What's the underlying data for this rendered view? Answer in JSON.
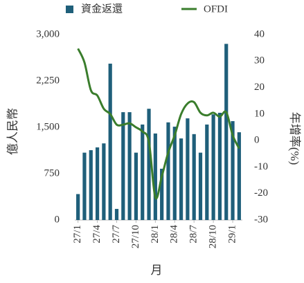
{
  "chart_data": {
    "type": "bar-line",
    "x_label": "月",
    "y_label": "億人民幣",
    "y2_label": "年增率(%)",
    "categories": [
      "27/1",
      null,
      null,
      "27/4",
      null,
      null,
      "27/7",
      null,
      null,
      "27/10",
      null,
      null,
      "28/1",
      null,
      null,
      "28/4",
      null,
      null,
      "28/7",
      null,
      null,
      "28/10",
      null,
      null,
      "29/1",
      null
    ],
    "series": [
      {
        "name": "資金返還",
        "type": "bar",
        "color": "#1f5f7a",
        "values": [
          420,
          1090,
          1130,
          1175,
          1240,
          2530,
          180,
          1745,
          1745,
          1090,
          1545,
          1800,
          1400,
          830,
          1580,
          1510,
          1320,
          1645,
          1390,
          1090,
          1545,
          1710,
          1735,
          2850,
          1600,
          1420
        ]
      },
      {
        "name": "OFDI",
        "type": "line",
        "axis": "y2",
        "color": "#3a7d2c",
        "values": [
          34.7,
          29.5,
          19,
          17,
          12,
          10,
          6,
          6,
          6.5,
          5,
          3.4,
          -0.5,
          -21.5,
          -13.5,
          -4.5,
          2,
          10,
          14,
          14.5,
          10.5,
          9.5,
          10.5,
          9,
          10.7,
          2,
          -3
        ]
      }
    ],
    "ylim": [
      0,
      3000
    ],
    "yticks": [
      0,
      750,
      {
        "value": 1500,
        "label": "1,500"
      },
      {
        "value": 2250,
        "label": "2,250"
      },
      {
        "value": 3000,
        "label": "3,000"
      }
    ],
    "y2lim": [
      -30,
      40
    ],
    "y2ticks": [
      -30,
      -20,
      -10,
      0,
      10,
      20,
      30,
      40
    ]
  }
}
